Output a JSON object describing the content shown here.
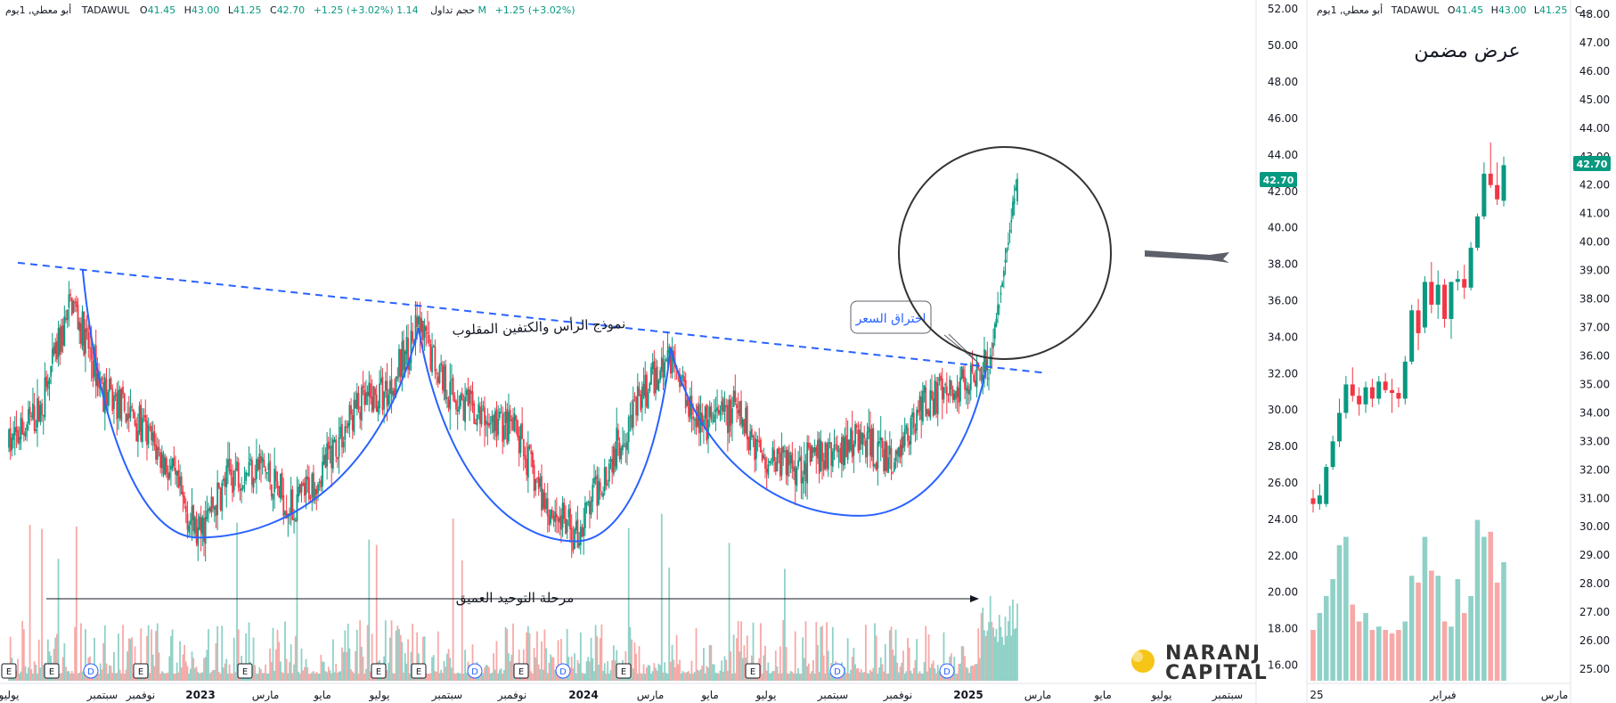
{
  "main_panel": {
    "header": {
      "timeframe": "أبو معطي, 1يوم",
      "exchange": "TADAWUL",
      "o_label": "O",
      "o_val": "41.45",
      "h_label": "H",
      "h_val": "43.00",
      "l_label": "L",
      "l_val": "41.25",
      "c_label": "C",
      "c_val": "42.70",
      "change": "+1.25 (+3.02%)",
      "volume_label": "حجم تداول",
      "volume_val": "1.14 M",
      "volume_change": "+1.25 (+3.02%)"
    },
    "price_tag": "42.70",
    "x_ticks": [
      "يوليو",
      "سبتمبر",
      "نوفمبر",
      "2023",
      "مارس",
      "مايو",
      "يوليو",
      "سبتمبر",
      "نوفمبر",
      "2024",
      "مارس",
      "مايو",
      "يوليو",
      "سبتمبر",
      "نوفمبر",
      "2025",
      "مارس",
      "مايو",
      "يوليو",
      "سبتمبر"
    ],
    "event_markers": [
      "E",
      "E",
      "D",
      "E",
      "E",
      "E",
      "E",
      "D",
      "E",
      "D",
      "E",
      "E",
      "D",
      "D"
    ],
    "annotations": {
      "pattern_label": "نموذج الرأس والكتفين المقلوب",
      "breakout_label": "اختراق السعر",
      "consolidation_label": "مرحلة التوحيد العميق"
    },
    "logo": {
      "line1": "NARANJ",
      "line2": "CAPITAL"
    }
  },
  "zoom_panel": {
    "header": {
      "timeframe": "أبو معطي, 1يوم",
      "exchange": "TADAWUL",
      "o_label": "O",
      "o_val": "41.45",
      "h_label": "H",
      "h_val": "43.00",
      "l_label": "L",
      "l_val": "41.25",
      "c_trunc": "C..."
    },
    "title": "عرض مضمن",
    "price_tag": "42.70",
    "x_ticks": [
      "25",
      "فبراير",
      "مارس"
    ]
  },
  "colors": {
    "up": "#089981",
    "down": "#f23645",
    "up_volume": "#8fd1c7",
    "down_volume": "#f7a9a7",
    "pattern_line": "#2962ff",
    "trendline": "#2962ff",
    "tag_bg": "#089981"
  },
  "chart_data": [
    {
      "type": "candlestick",
      "title": "",
      "timeframe": "1D",
      "y_axis": {
        "ticks": [
          16,
          18,
          20,
          22,
          24,
          26,
          28,
          30,
          32,
          34,
          36,
          38,
          40,
          42,
          44,
          46,
          48,
          50,
          52
        ],
        "ylim": [
          15,
          52.5
        ]
      },
      "last_price": 42.7,
      "ohlc_last": {
        "o": 41.45,
        "h": 43.0,
        "l": 41.25,
        "c": 42.7
      },
      "approx_closes": [
        {
          "t": "2022-06",
          "p": 28
        },
        {
          "t": "2022-07",
          "p": 30
        },
        {
          "t": "2022-08",
          "p": 36
        },
        {
          "t": "2022-09",
          "p": 31
        },
        {
          "t": "2022-10",
          "p": 29.5
        },
        {
          "t": "2022-11",
          "p": 27
        },
        {
          "t": "2022-12",
          "p": 23
        },
        {
          "t": "2023-01",
          "p": 26.5
        },
        {
          "t": "2023-02",
          "p": 27
        },
        {
          "t": "2023-03",
          "p": 24.5
        },
        {
          "t": "2023-04",
          "p": 27
        },
        {
          "t": "2023-05",
          "p": 30
        },
        {
          "t": "2023-06",
          "p": 31
        },
        {
          "t": "2023-07",
          "p": 34.5
        },
        {
          "t": "2023-08",
          "p": 31
        },
        {
          "t": "2023-09",
          "p": 29.5
        },
        {
          "t": "2023-10",
          "p": 29
        },
        {
          "t": "2023-11",
          "p": 25
        },
        {
          "t": "2023-12",
          "p": 23
        },
        {
          "t": "2024-01",
          "p": 27
        },
        {
          "t": "2024-02",
          "p": 30.5
        },
        {
          "t": "2024-03",
          "p": 33
        },
        {
          "t": "2024-04",
          "p": 29
        },
        {
          "t": "2024-05",
          "p": 30
        },
        {
          "t": "2024-06",
          "p": 27.5
        },
        {
          "t": "2024-07",
          "p": 27
        },
        {
          "t": "2024-08",
          "p": 27.5
        },
        {
          "t": "2024-09",
          "p": 28.5
        },
        {
          "t": "2024-10",
          "p": 27
        },
        {
          "t": "2024-11",
          "p": 30.5
        },
        {
          "t": "2024-12",
          "p": 31
        },
        {
          "t": "2025-01",
          "p": 33
        },
        {
          "t": "2025-02",
          "p": 42.7
        }
      ],
      "trendline": {
        "start": {
          "t": "2022-08",
          "p": 37.7
        },
        "end": {
          "t": "2025-02",
          "p": 32.2
        }
      },
      "curves": [
        {
          "from": {
            "t": "2022-08",
            "p": 37.7
          },
          "trough": {
            "t": "2022-12",
            "p": 23.0
          },
          "to": {
            "t": "2023-07",
            "p": 34.5
          }
        },
        {
          "from": {
            "t": "2023-07",
            "p": 34.5
          },
          "trough": {
            "t": "2023-12",
            "p": 22.8
          },
          "to": {
            "t": "2024-03",
            "p": 33.4
          }
        },
        {
          "from": {
            "t": "2024-03",
            "p": 33.4
          },
          "trough": {
            "t": "2024-09",
            "p": 24.2
          },
          "to": {
            "t": "2025-01",
            "p": 32.2
          }
        }
      ]
    },
    {
      "type": "candlestick",
      "title": "عرض مضمن",
      "y_axis": {
        "ticks": [
          25,
          26,
          27,
          28,
          29,
          30,
          31,
          32,
          33,
          34,
          35,
          36,
          37,
          38,
          39,
          40,
          41,
          42,
          43,
          44,
          45,
          46,
          47,
          48
        ],
        "ylim": [
          24.5,
          48.5
        ]
      },
      "last_price": 42.7,
      "candles": [
        {
          "o": 31.0,
          "h": 31.3,
          "l": 30.5,
          "c": 30.8
        },
        {
          "o": 30.8,
          "h": 31.5,
          "l": 30.6,
          "c": 31.1
        },
        {
          "o": 30.8,
          "h": 32.2,
          "l": 30.7,
          "c": 32.1
        },
        {
          "o": 32.1,
          "h": 33.2,
          "l": 32.0,
          "c": 33.0
        },
        {
          "o": 33.0,
          "h": 34.5,
          "l": 32.8,
          "c": 34.0
        },
        {
          "o": 34.0,
          "h": 35.3,
          "l": 33.8,
          "c": 35.0
        },
        {
          "o": 35.0,
          "h": 35.6,
          "l": 34.4,
          "c": 34.6
        },
        {
          "o": 34.6,
          "h": 34.9,
          "l": 33.9,
          "c": 34.3
        },
        {
          "o": 34.3,
          "h": 35.1,
          "l": 34.0,
          "c": 34.9
        },
        {
          "o": 34.9,
          "h": 35.2,
          "l": 34.2,
          "c": 34.5
        },
        {
          "o": 34.5,
          "h": 35.3,
          "l": 34.3,
          "c": 35.1
        },
        {
          "o": 35.1,
          "h": 35.4,
          "l": 34.7,
          "c": 34.8
        },
        {
          "o": 34.8,
          "h": 35.2,
          "l": 34.0,
          "c": 34.7
        },
        {
          "o": 34.7,
          "h": 34.9,
          "l": 34.2,
          "c": 34.5
        },
        {
          "o": 34.5,
          "h": 36.0,
          "l": 34.3,
          "c": 35.8
        },
        {
          "o": 35.8,
          "h": 37.8,
          "l": 35.7,
          "c": 37.6
        },
        {
          "o": 37.6,
          "h": 38.0,
          "l": 36.2,
          "c": 36.8
        },
        {
          "o": 37.0,
          "h": 38.8,
          "l": 36.8,
          "c": 38.6
        },
        {
          "o": 38.6,
          "h": 39.3,
          "l": 37.5,
          "c": 37.8
        },
        {
          "o": 37.8,
          "h": 39.0,
          "l": 37.3,
          "c": 38.5
        },
        {
          "o": 38.5,
          "h": 38.7,
          "l": 37.0,
          "c": 37.3
        },
        {
          "o": 37.3,
          "h": 38.6,
          "l": 36.6,
          "c": 38.6
        },
        {
          "o": 38.6,
          "h": 39.0,
          "l": 38.3,
          "c": 38.7
        },
        {
          "o": 38.7,
          "h": 39.2,
          "l": 38.0,
          "c": 38.4
        },
        {
          "o": 38.4,
          "h": 40.0,
          "l": 38.3,
          "c": 39.8
        },
        {
          "o": 39.8,
          "h": 41.0,
          "l": 39.7,
          "c": 40.9
        },
        {
          "o": 40.9,
          "h": 42.8,
          "l": 40.8,
          "c": 42.4
        },
        {
          "o": 42.4,
          "h": 43.5,
          "l": 41.9,
          "c": 42.0
        },
        {
          "o": 42.0,
          "h": 42.8,
          "l": 41.3,
          "c": 41.5
        },
        {
          "o": 41.45,
          "h": 43.0,
          "l": 41.25,
          "c": 42.7
        }
      ]
    }
  ]
}
